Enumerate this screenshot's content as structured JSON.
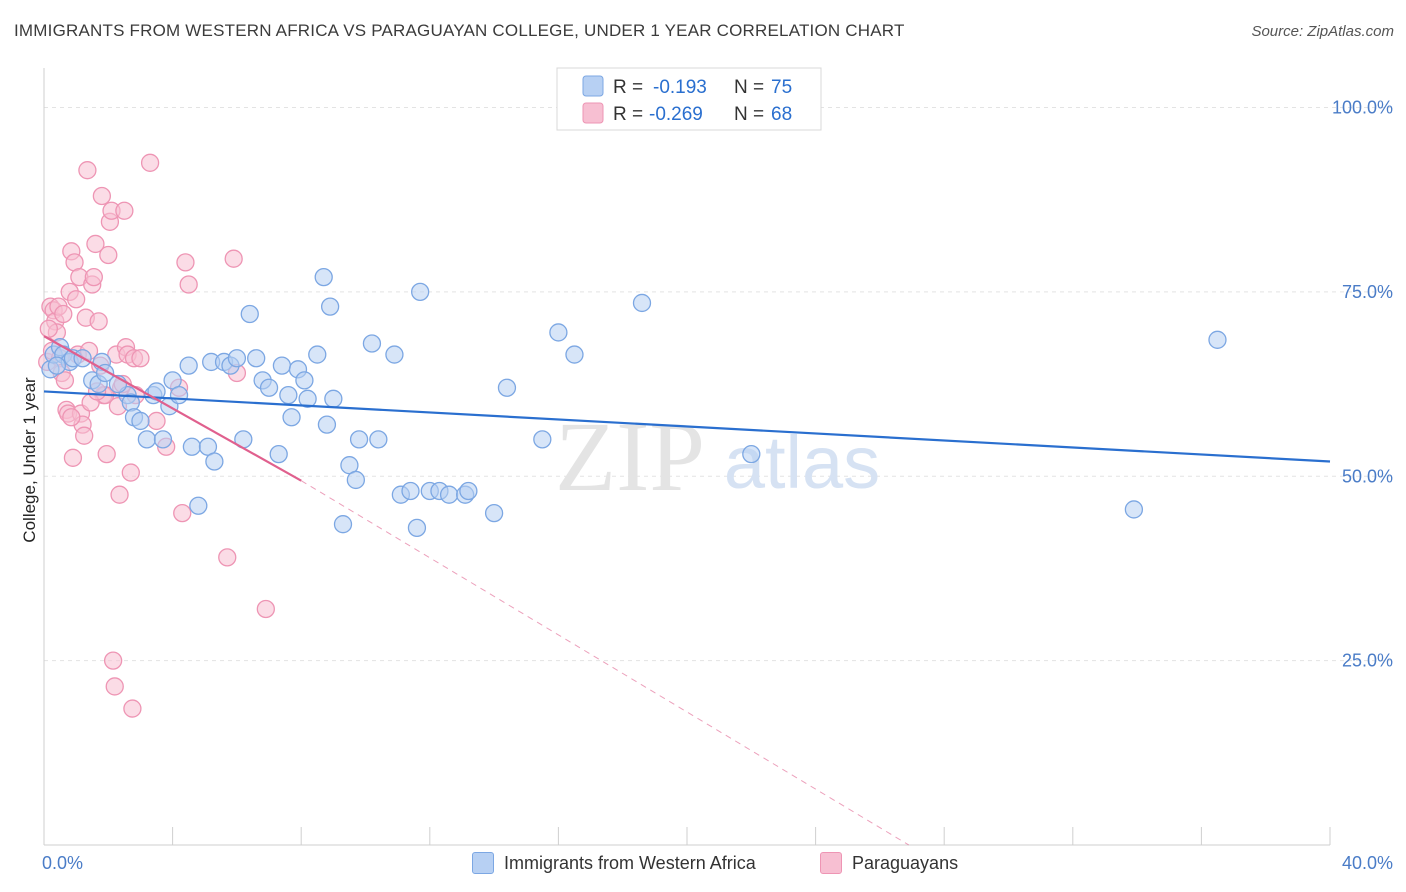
{
  "title": "IMMIGRANTS FROM WESTERN AFRICA VS PARAGUAYAN COLLEGE, UNDER 1 YEAR CORRELATION CHART",
  "source": "Source: ZipAtlas.com",
  "watermark": {
    "zip": "ZIP",
    "atlas": "atlas"
  },
  "legend": {
    "rows": [
      {
        "r_label": "R =",
        "r_value": "-0.193",
        "n_label": "N =",
        "n_value": "75"
      },
      {
        "r_label": "R =",
        "r_value": "-0.269",
        "n_label": "N =",
        "n_value": "68"
      }
    ]
  },
  "bottom_legend": [
    "Immigrants from Western Africa",
    "Paraguayans"
  ],
  "colors": {
    "blue_fill": "#b7d0f3",
    "blue_stroke": "#7ca7e3",
    "blue_line": "#2a6fcf",
    "pink_fill": "#f7bfd2",
    "pink_stroke": "#ee95b4",
    "pink_line": "#e0608e",
    "value_text": "#2a6fcf"
  },
  "chart_data": {
    "type": "scatter",
    "title": "IMMIGRANTS FROM WESTERN AFRICA VS PARAGUAYAN COLLEGE, UNDER 1 YEAR CORRELATION CHART",
    "xlabel": "",
    "ylabel": "College, Under 1 year",
    "xlim": [
      0,
      40
    ],
    "ylim": [
      0,
      104
    ],
    "x_tick_labels": [
      "0.0%",
      "40.0%"
    ],
    "y_ticks": [
      25,
      50,
      75,
      100
    ],
    "y_tick_labels": [
      "25.0%",
      "50.0%",
      "75.0%",
      "100.0%"
    ],
    "series": [
      {
        "name": "Immigrants from Western Africa",
        "color": "#7ca7e3",
        "points": [
          [
            0.2,
            64.5
          ],
          [
            0.3,
            66.5
          ],
          [
            0.5,
            67.5
          ],
          [
            0.6,
            66.5
          ],
          [
            0.8,
            65.5
          ],
          [
            0.9,
            66
          ],
          [
            1.5,
            63
          ],
          [
            1.8,
            65.5
          ],
          [
            1.7,
            62.5
          ],
          [
            1.9,
            64
          ],
          [
            2.6,
            61
          ],
          [
            2.7,
            60
          ],
          [
            2.8,
            58
          ],
          [
            3.0,
            57.5
          ],
          [
            3.2,
            55
          ],
          [
            3.4,
            61
          ],
          [
            3.5,
            61.5
          ],
          [
            3.7,
            55
          ],
          [
            3.9,
            59.5
          ],
          [
            4.0,
            63
          ],
          [
            4.2,
            61
          ],
          [
            4.5,
            65
          ],
          [
            4.6,
            54
          ],
          [
            4.8,
            46
          ],
          [
            5.1,
            54
          ],
          [
            5.2,
            65.5
          ],
          [
            5.3,
            52
          ],
          [
            5.6,
            65.5
          ],
          [
            5.8,
            65
          ],
          [
            6.0,
            66
          ],
          [
            6.2,
            55
          ],
          [
            6.4,
            72
          ],
          [
            6.6,
            66
          ],
          [
            6.8,
            63
          ],
          [
            7.0,
            62
          ],
          [
            7.3,
            53
          ],
          [
            7.4,
            65
          ],
          [
            7.6,
            61
          ],
          [
            7.7,
            58
          ],
          [
            7.9,
            64.5
          ],
          [
            8.1,
            63
          ],
          [
            8.2,
            60.5
          ],
          [
            8.5,
            66.5
          ],
          [
            8.7,
            77
          ],
          [
            8.8,
            57
          ],
          [
            8.9,
            73
          ],
          [
            9.0,
            60.5
          ],
          [
            9.3,
            43.5
          ],
          [
            9.5,
            51.5
          ],
          [
            9.7,
            49.5
          ],
          [
            9.8,
            55
          ],
          [
            10.2,
            68
          ],
          [
            10.4,
            55
          ],
          [
            10.9,
            66.5
          ],
          [
            11.1,
            47.5
          ],
          [
            11.4,
            48
          ],
          [
            11.6,
            43
          ],
          [
            11.7,
            75
          ],
          [
            12.0,
            48
          ],
          [
            12.3,
            48
          ],
          [
            12.6,
            47.5
          ],
          [
            13.1,
            47.5
          ],
          [
            13.2,
            48
          ],
          [
            14.0,
            45
          ],
          [
            14.4,
            62
          ],
          [
            15.5,
            55
          ],
          [
            16.0,
            69.5
          ],
          [
            16.5,
            66.5
          ],
          [
            18.6,
            73.5
          ],
          [
            22.0,
            53
          ],
          [
            33.9,
            45.5
          ],
          [
            36.5,
            68.5
          ],
          [
            0.4,
            65
          ],
          [
            1.2,
            66
          ],
          [
            2.3,
            62.5
          ]
        ]
      },
      {
        "name": "Paraguayans",
        "color": "#ee95b4",
        "points": [
          [
            0.1,
            65.5
          ],
          [
            0.2,
            73
          ],
          [
            0.25,
            67
          ],
          [
            0.3,
            72.5
          ],
          [
            0.35,
            71
          ],
          [
            0.4,
            69.5
          ],
          [
            0.45,
            73
          ],
          [
            0.5,
            66
          ],
          [
            0.55,
            64
          ],
          [
            0.6,
            72
          ],
          [
            0.7,
            59
          ],
          [
            0.75,
            58.5
          ],
          [
            0.8,
            75
          ],
          [
            0.85,
            80.5
          ],
          [
            0.9,
            52.5
          ],
          [
            0.95,
            79
          ],
          [
            1.0,
            74
          ],
          [
            1.05,
            66.5
          ],
          [
            1.1,
            77
          ],
          [
            1.15,
            58.5
          ],
          [
            1.2,
            57
          ],
          [
            1.25,
            55.5
          ],
          [
            1.3,
            71.5
          ],
          [
            1.35,
            91.5
          ],
          [
            1.4,
            67
          ],
          [
            1.5,
            76
          ],
          [
            1.55,
            77
          ],
          [
            1.6,
            81.5
          ],
          [
            1.7,
            71
          ],
          [
            1.75,
            65
          ],
          [
            1.8,
            88
          ],
          [
            1.85,
            61
          ],
          [
            1.9,
            61
          ],
          [
            1.95,
            53
          ],
          [
            2.0,
            80
          ],
          [
            2.05,
            84.5
          ],
          [
            2.1,
            86
          ],
          [
            2.15,
            25
          ],
          [
            2.2,
            21.5
          ],
          [
            2.25,
            66.5
          ],
          [
            2.3,
            59.5
          ],
          [
            2.35,
            47.5
          ],
          [
            2.4,
            62
          ],
          [
            2.5,
            86
          ],
          [
            2.55,
            67.5
          ],
          [
            2.6,
            66.5
          ],
          [
            2.7,
            50.5
          ],
          [
            2.75,
            18.5
          ],
          [
            2.8,
            66
          ],
          [
            2.85,
            61
          ],
          [
            3.0,
            66
          ],
          [
            3.3,
            92.5
          ],
          [
            3.5,
            57.5
          ],
          [
            3.8,
            54
          ],
          [
            4.2,
            62
          ],
          [
            4.3,
            45
          ],
          [
            4.4,
            79
          ],
          [
            4.5,
            76
          ],
          [
            5.7,
            39
          ],
          [
            5.9,
            79.5
          ],
          [
            6.0,
            64
          ],
          [
            6.9,
            32
          ],
          [
            0.15,
            70
          ],
          [
            0.65,
            63
          ],
          [
            1.45,
            60
          ],
          [
            0.85,
            58
          ],
          [
            1.65,
            61.5
          ],
          [
            2.45,
            62.5
          ]
        ]
      }
    ],
    "trendlines": [
      {
        "series": "Immigrants from Western Africa",
        "x": [
          0,
          40
        ],
        "y": [
          61.5,
          52
        ],
        "style": "solid"
      },
      {
        "series": "Paraguayans",
        "x": [
          0,
          8
        ],
        "y": [
          69,
          49.4
        ],
        "style": "solid"
      },
      {
        "series": "Paraguayans",
        "x": [
          8,
          26.9
        ],
        "y": [
          49.4,
          0
        ],
        "style": "dashed"
      }
    ]
  }
}
